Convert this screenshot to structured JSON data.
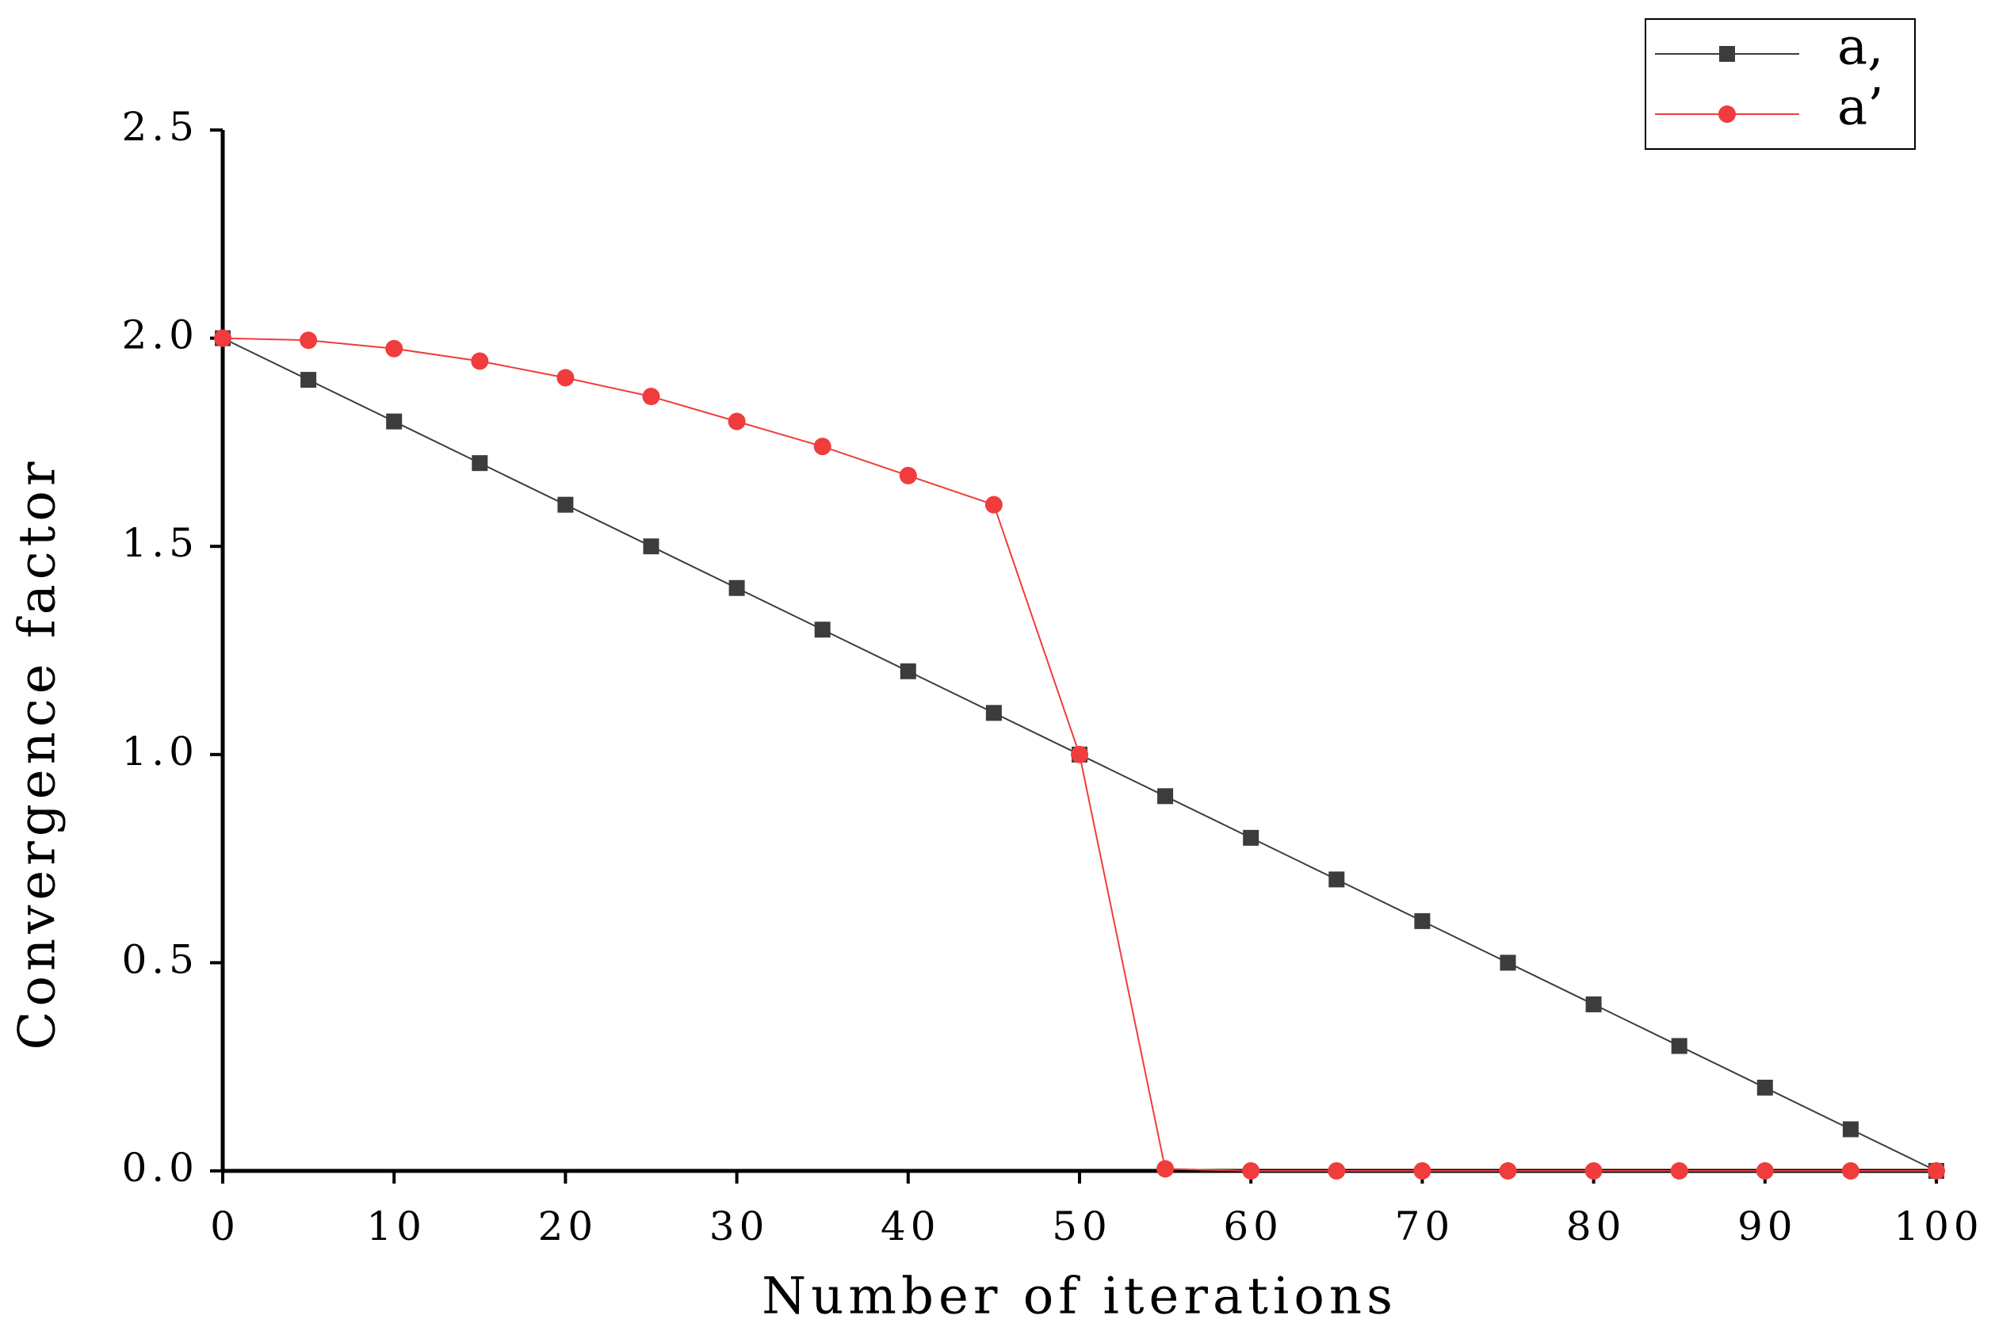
{
  "chart_data": {
    "type": "line",
    "xlabel": "Number of iterations",
    "ylabel": "Convergence factor",
    "x": [
      0,
      5,
      10,
      15,
      20,
      25,
      30,
      35,
      40,
      45,
      50,
      55,
      60,
      65,
      70,
      75,
      80,
      85,
      90,
      95,
      100
    ],
    "series": [
      {
        "name": "a,",
        "color": "#3c3c3c",
        "marker": "square",
        "values": [
          2.0,
          1.9,
          1.8,
          1.7,
          1.6,
          1.5,
          1.4,
          1.3,
          1.2,
          1.1,
          1.0,
          0.9,
          0.8,
          0.7,
          0.6,
          0.5,
          0.4,
          0.3,
          0.2,
          0.1,
          0.0
        ]
      },
      {
        "name": "a’",
        "color": "#f03c3c",
        "marker": "circle",
        "values": [
          2.0,
          1.995,
          1.975,
          1.945,
          1.905,
          1.86,
          1.8,
          1.74,
          1.67,
          1.6,
          1.0,
          0.005,
          0,
          0,
          0,
          0,
          0,
          0,
          0,
          0,
          0
        ]
      }
    ],
    "xlim": [
      0,
      100
    ],
    "ylim": [
      0,
      2.5
    ],
    "xticks": [
      0,
      10,
      20,
      30,
      40,
      50,
      60,
      70,
      80,
      90,
      100
    ],
    "yticks": [
      {
        "value": 0,
        "label": "0.0"
      },
      0.5,
      {
        "value": 1,
        "label": "1.0"
      },
      1.5,
      {
        "value": 2,
        "label": "2.0"
      },
      2.5
    ],
    "legend": "upper right",
    "grid": false
  }
}
